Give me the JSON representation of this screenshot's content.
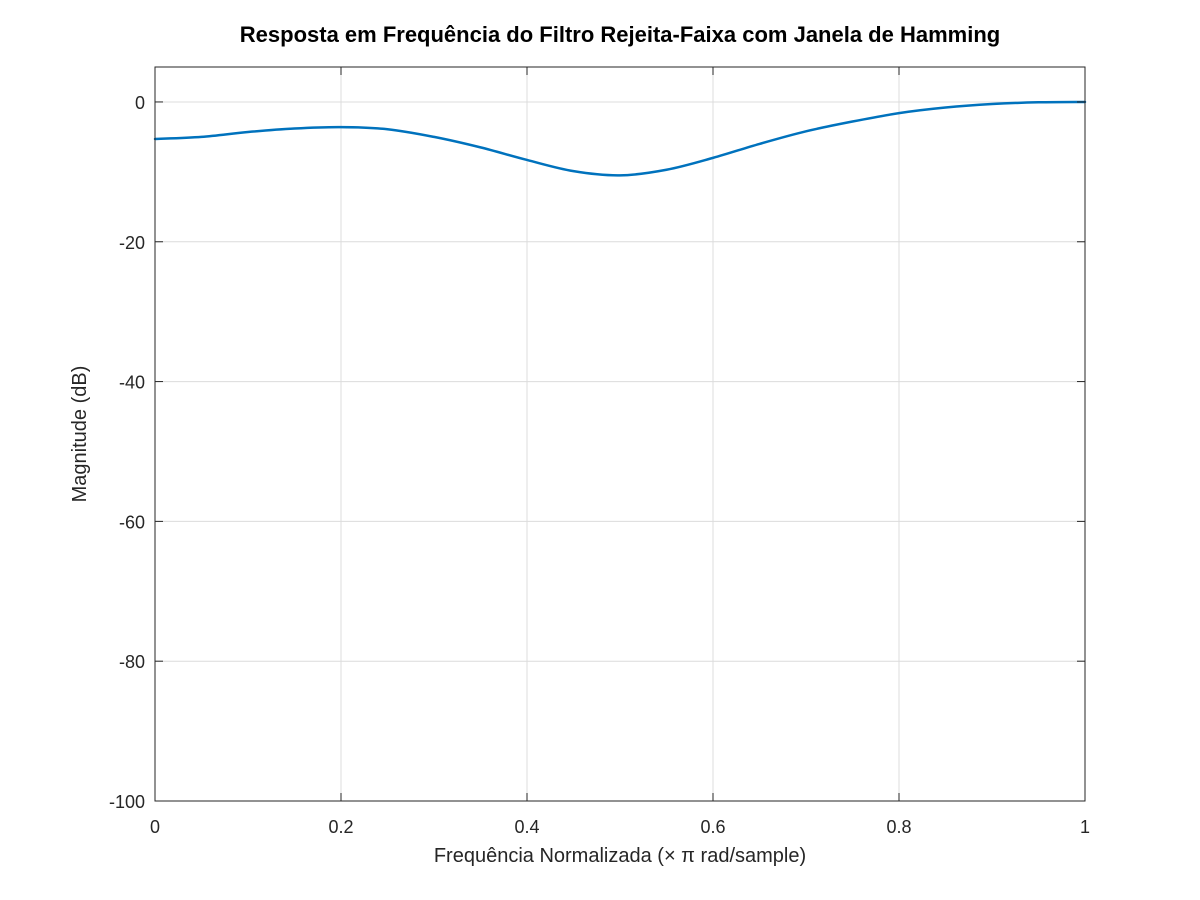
{
  "chart_data": {
    "type": "line",
    "title": "Resposta em Frequência do Filtro Rejeita-Faixa com Janela de Hamming",
    "xlabel": "Frequência Normalizada (× π rad/sample)",
    "ylabel": "Magnitude (dB)",
    "xlim": [
      0,
      1
    ],
    "ylim": [
      -100,
      5
    ],
    "xticks": [
      0,
      0.2,
      0.4,
      0.6,
      0.8,
      1
    ],
    "xtick_labels": [
      "0",
      "0.2",
      "0.4",
      "0.6",
      "0.8",
      "1"
    ],
    "yticks": [
      0,
      -20,
      -40,
      -60,
      -80,
      -100
    ],
    "ytick_labels": [
      "0",
      "-20",
      "-40",
      "-60",
      "-80",
      "-100"
    ],
    "grid": true,
    "legend": "none",
    "series": [
      {
        "color": "#0072bd",
        "x": [
          0,
          0.05,
          0.1,
          0.15,
          0.2,
          0.25,
          0.3,
          0.35,
          0.4,
          0.45,
          0.5,
          0.55,
          0.6,
          0.65,
          0.7,
          0.75,
          0.8,
          0.85,
          0.9,
          0.95,
          1
        ],
        "y": [
          -5.3,
          -5.0,
          -4.3,
          -3.8,
          -3.6,
          -3.9,
          -5.0,
          -6.5,
          -8.3,
          -9.9,
          -10.5,
          -9.7,
          -8.0,
          -6.0,
          -4.2,
          -2.8,
          -1.6,
          -0.8,
          -0.3,
          -0.05,
          0
        ]
      }
    ]
  }
}
